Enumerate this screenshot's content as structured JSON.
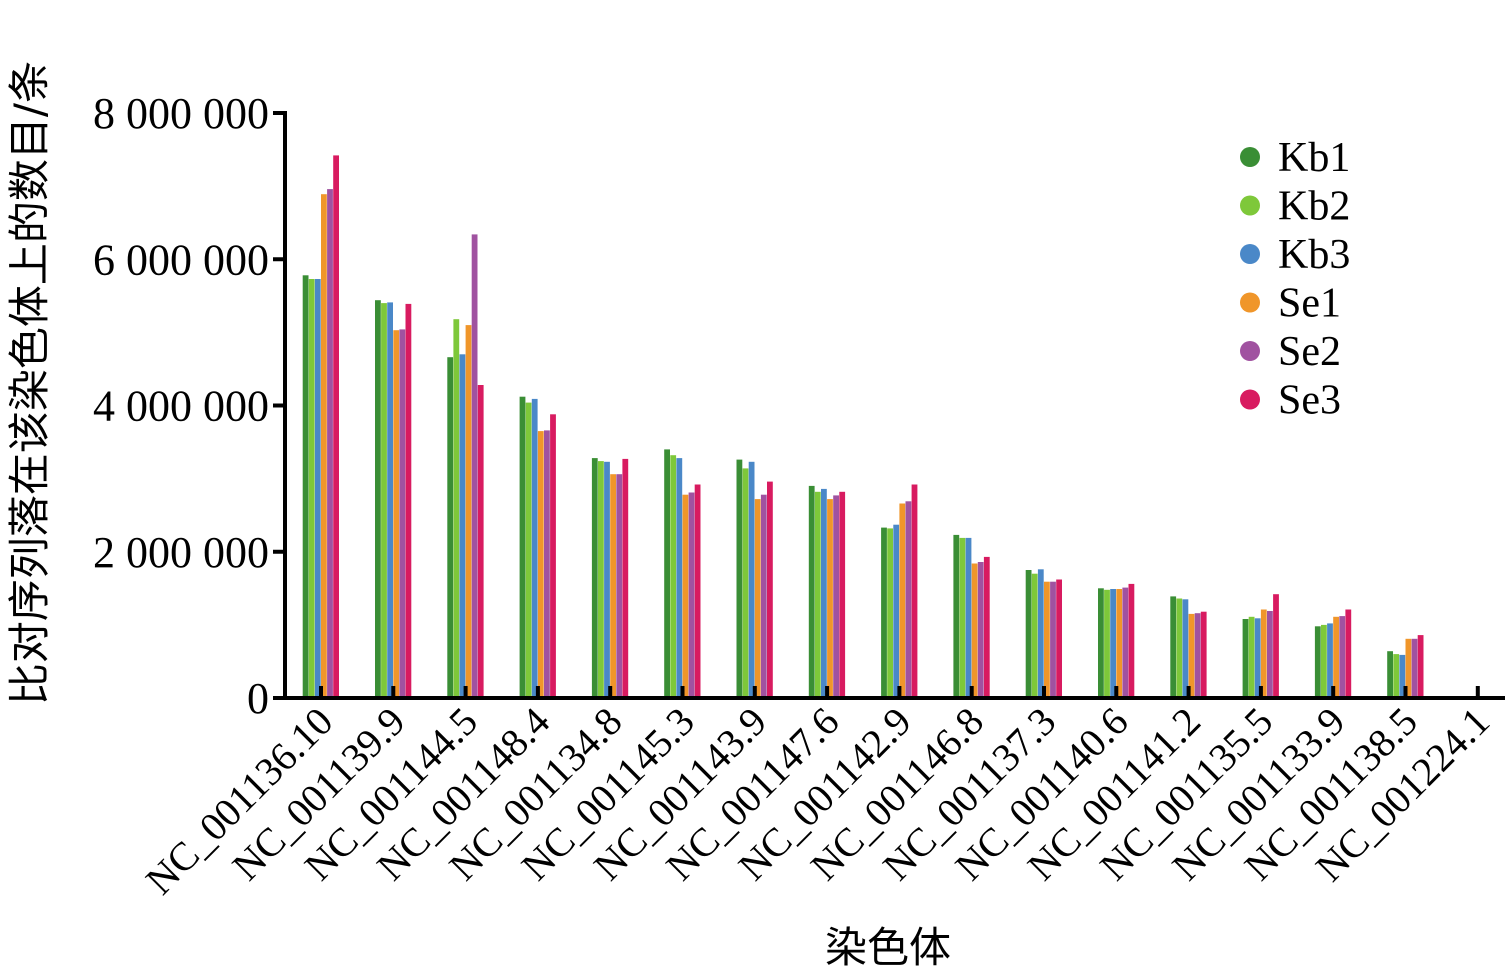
{
  "chart_data": {
    "type": "bar",
    "xlabel": "染色体",
    "ylabel": "比对序列落在该染色体上的数目/条",
    "ylim": [
      0,
      8000000
    ],
    "yticks": [
      0,
      2000000,
      4000000,
      6000000,
      8000000
    ],
    "ytick_labels": [
      "0",
      "2 000 000",
      "4 000 000",
      "6 000 000",
      "8 000 000"
    ],
    "legend_position": "top-right",
    "grid": false,
    "categories": [
      "NC_001136.10",
      "NC_001139.9",
      "NC_001144.5",
      "NC_001148.4",
      "NC_001134.8",
      "NC_001145.3",
      "NC_001143.9",
      "NC_001147.6",
      "NC_001142.9",
      "NC_001146.8",
      "NC_001137.3",
      "NC_001140.6",
      "NC_001141.2",
      "NC_001135.5",
      "NC_001133.9",
      "NC_001138.5",
      "NC_001224.1"
    ],
    "series": [
      {
        "name": "Kb1",
        "color": "#3a8e35",
        "values": [
          5780000,
          5440000,
          4660000,
          4120000,
          3280000,
          3400000,
          3260000,
          2900000,
          2330000,
          2230000,
          1750000,
          1500000,
          1390000,
          1080000,
          980000,
          640000,
          0
        ]
      },
      {
        "name": "Kb2",
        "color": "#7ec83a",
        "values": [
          5730000,
          5400000,
          5180000,
          4040000,
          3240000,
          3320000,
          3140000,
          2820000,
          2320000,
          2190000,
          1700000,
          1480000,
          1360000,
          1110000,
          1000000,
          600000,
          0
        ]
      },
      {
        "name": "Kb3",
        "color": "#4a88c8",
        "values": [
          5730000,
          5410000,
          4700000,
          4090000,
          3230000,
          3280000,
          3230000,
          2860000,
          2370000,
          2190000,
          1760000,
          1490000,
          1350000,
          1090000,
          1020000,
          590000,
          0
        ]
      },
      {
        "name": "Se1",
        "color": "#f0962a",
        "values": [
          6890000,
          5030000,
          5100000,
          3650000,
          3060000,
          2780000,
          2720000,
          2720000,
          2660000,
          1840000,
          1590000,
          1490000,
          1150000,
          1210000,
          1110000,
          810000,
          0
        ]
      },
      {
        "name": "Se2",
        "color": "#a052a0",
        "values": [
          6960000,
          5040000,
          6340000,
          3660000,
          3060000,
          2810000,
          2780000,
          2770000,
          2690000,
          1860000,
          1590000,
          1510000,
          1160000,
          1190000,
          1120000,
          810000,
          0
        ]
      },
      {
        "name": "Se3",
        "color": "#d81b60",
        "values": [
          7420000,
          5390000,
          4280000,
          3880000,
          3270000,
          2920000,
          2960000,
          2820000,
          2920000,
          1930000,
          1620000,
          1560000,
          1180000,
          1420000,
          1210000,
          860000,
          0
        ]
      }
    ]
  }
}
